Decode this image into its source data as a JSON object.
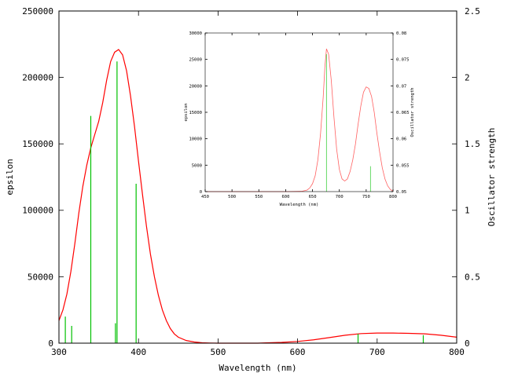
{
  "chart_data": [
    {
      "type": "line",
      "role": "main",
      "xlabel": "Wavelength (nm)",
      "ylabel": "epsilon",
      "y2label": "Oscillator strength",
      "xlim": [
        300,
        800
      ],
      "ylim": [
        0,
        250000
      ],
      "y2lim": [
        0,
        2.5
      ],
      "xticks": [
        "300",
        "400",
        "500",
        "600",
        "700",
        "800"
      ],
      "yticks": [
        "0",
        "50000",
        "100000",
        "150000",
        "200000",
        "250000"
      ],
      "y2ticks": [
        "0",
        "0.5",
        "1",
        "1.5",
        "2",
        "2.5"
      ],
      "grid": false,
      "colors": {
        "spectrum": "#ff0000",
        "sticks": "#00c000"
      },
      "series": [
        {
          "kind": "spectrum",
          "axis": "left",
          "x": [
            300,
            305,
            310,
            315,
            320,
            325,
            330,
            335,
            340,
            345,
            350,
            355,
            360,
            365,
            370,
            375,
            380,
            385,
            390,
            395,
            400,
            405,
            410,
            415,
            420,
            425,
            430,
            435,
            440,
            445,
            450,
            460,
            470,
            480,
            490,
            500,
            550,
            560,
            580,
            600,
            620,
            640,
            660,
            680,
            700,
            720,
            740,
            760,
            780,
            800
          ],
          "values": [
            17000,
            25000,
            37000,
            54000,
            75000,
            98000,
            118000,
            134000,
            147000,
            157000,
            167000,
            181000,
            198000,
            212000,
            219000,
            221000,
            217000,
            205000,
            186000,
            163000,
            137000,
            112000,
            88000,
            67000,
            50000,
            36000,
            25000,
            17000,
            11000,
            7000,
            4500,
            2000,
            900,
            300,
            100,
            0,
            0,
            200,
            600,
            1300,
            2500,
            4200,
            6000,
            7200,
            7600,
            7600,
            7400,
            7000,
            6000,
            4500
          ]
        },
        {
          "kind": "sticks",
          "axis": "right",
          "x": [
            308,
            316,
            340,
            371,
            373,
            397,
            676,
            758
          ],
          "values": [
            0.2,
            0.13,
            1.71,
            0.15,
            2.12,
            1.2,
            0.07,
            0.06
          ]
        }
      ]
    },
    {
      "type": "line",
      "role": "inset",
      "xlabel": "Wavelength (nm)",
      "ylabel": "epsilon",
      "y2label": "Oscillator strength",
      "xlim": [
        450,
        800
      ],
      "ylim": [
        0,
        30000
      ],
      "y2lim": [
        0.05,
        0.08
      ],
      "xticks": [
        "450",
        "500",
        "550",
        "600",
        "650",
        "700",
        "750",
        "800"
      ],
      "yticks": [
        "0",
        "5000",
        "10000",
        "15000",
        "20000",
        "25000",
        "30000"
      ],
      "y2ticks": [
        "0.05",
        "0.055",
        "0.06",
        "0.065",
        "0.07",
        "0.075",
        "0.08"
      ],
      "grid": false,
      "colors": {
        "spectrum": "#ff6060",
        "sticks": "#40d040"
      },
      "series": [
        {
          "kind": "spectrum",
          "axis": "left",
          "x": [
            450,
            600,
            630,
            640,
            645,
            650,
            655,
            660,
            665,
            670,
            673,
            676,
            680,
            685,
            690,
            695,
            700,
            705,
            710,
            715,
            720,
            725,
            730,
            735,
            740,
            745,
            750,
            755,
            760,
            765,
            770,
            775,
            780,
            785,
            790,
            795,
            800
          ],
          "values": [
            0,
            0,
            50,
            300,
            700,
            1500,
            3000,
            6000,
            11000,
            18000,
            23500,
            27000,
            26000,
            21000,
            14000,
            8000,
            4200,
            2400,
            2000,
            2400,
            3800,
            6000,
            9000,
            12800,
            16200,
            18800,
            19800,
            19500,
            18000,
            15000,
            11000,
            7500,
            4500,
            2400,
            1100,
            400,
            100
          ]
        },
        {
          "kind": "sticks",
          "axis": "right",
          "x": [
            676,
            758
          ],
          "values": [
            0.076,
            0.0548
          ]
        }
      ]
    }
  ]
}
